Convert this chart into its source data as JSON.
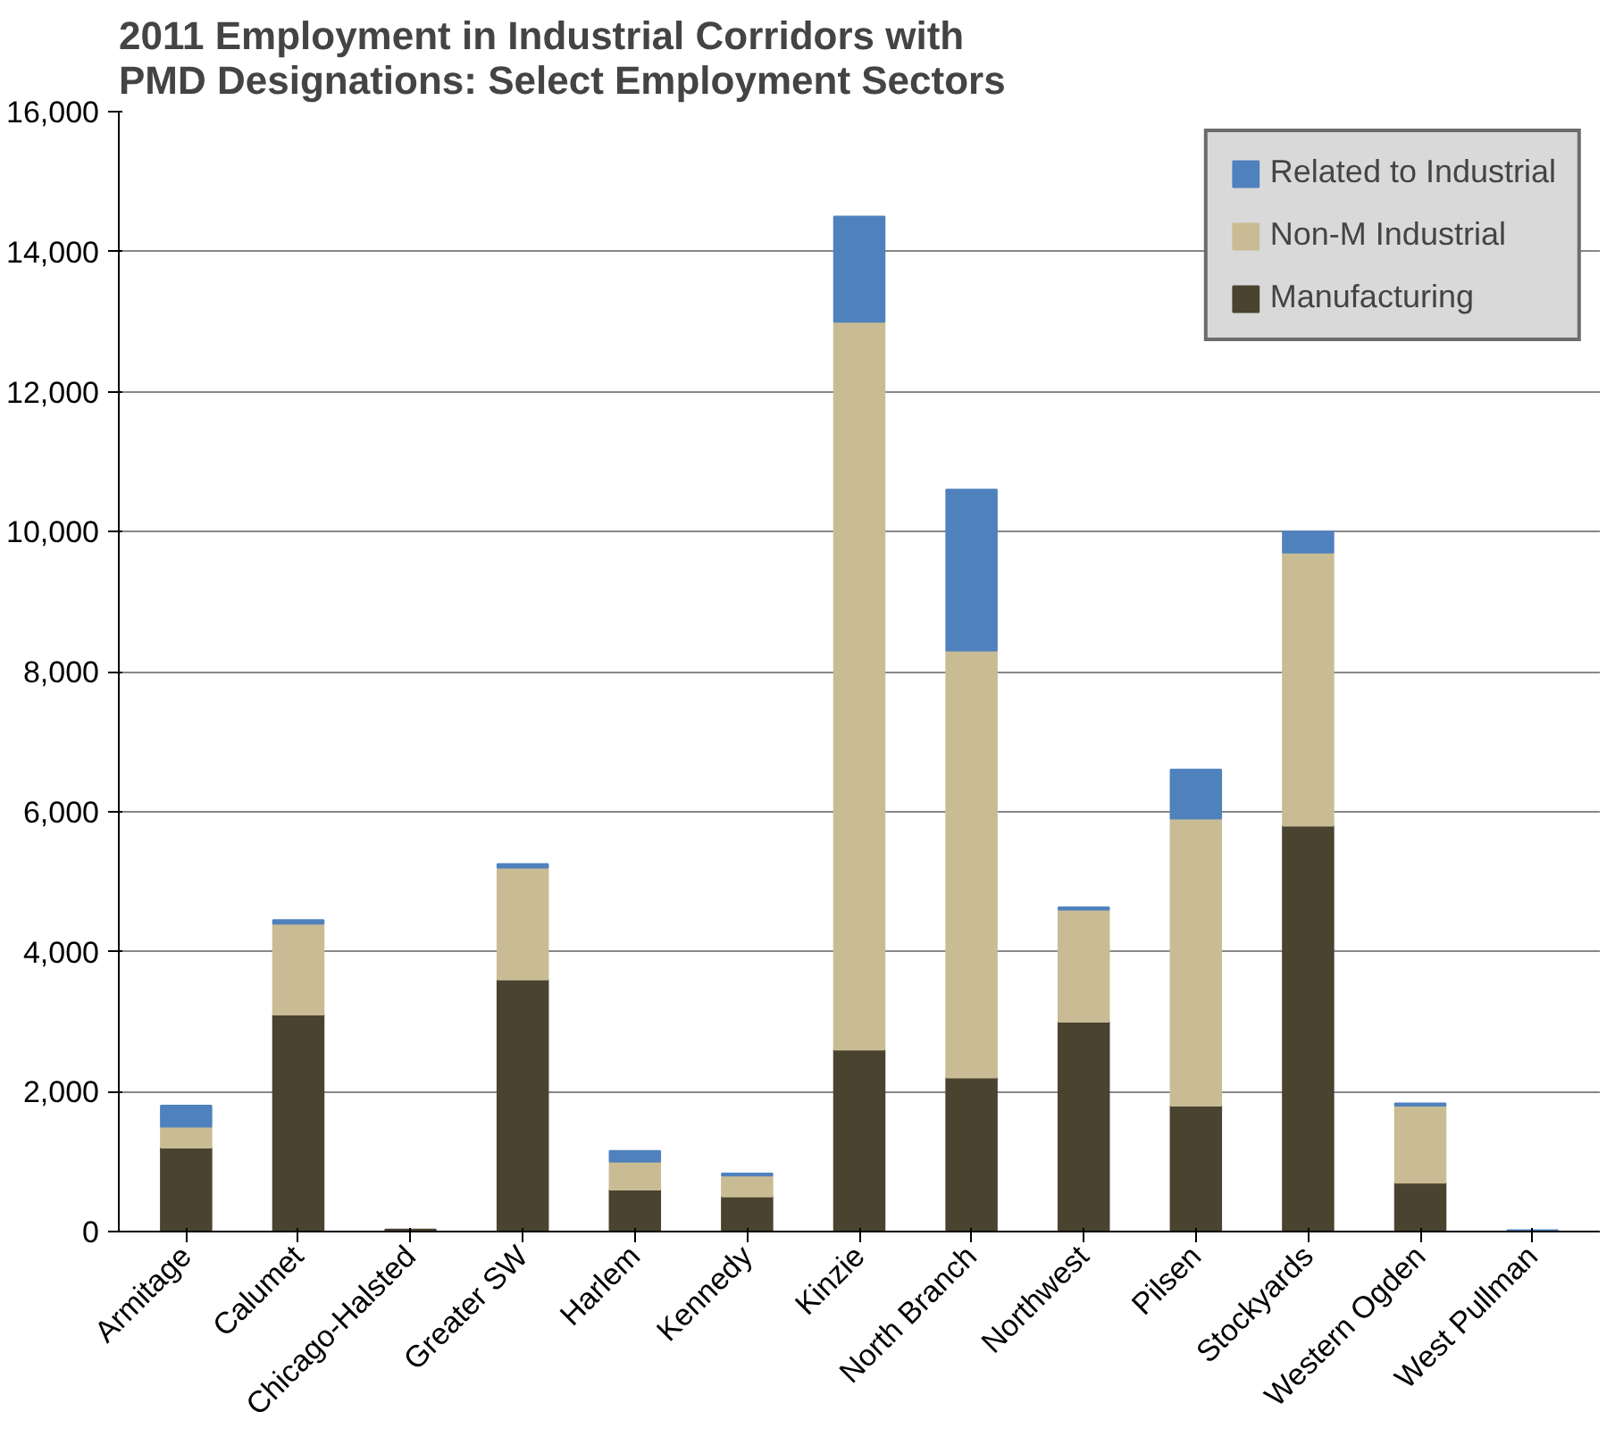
{
  "chart_data": {
    "type": "bar",
    "stacked": true,
    "title": "2011 Employment in Industrial Corridors with PMD Designations:  Select Employment Sectors",
    "categories": [
      "Armitage",
      "Calumet",
      "Chicago-Halsted",
      "Greater SW",
      "Harlem",
      "Kennedy",
      "Kinzie",
      "North Branch",
      "Northwest",
      "Pilsen",
      "Stockyards",
      "Western Ogden",
      "West Pullman"
    ],
    "series": [
      {
        "name": "Manufacturing",
        "color": "#4a4330",
        "values": [
          1200,
          3100,
          30,
          3600,
          600,
          500,
          2600,
          2200,
          3000,
          1800,
          5800,
          700,
          null
        ]
      },
      {
        "name": "Non-M Industrial",
        "color": "#c9bc94",
        "values": [
          300,
          1300,
          null,
          1600,
          400,
          300,
          10400,
          6100,
          1600,
          4100,
          3900,
          1100,
          null
        ]
      },
      {
        "name": "Related to Industrial",
        "color": "#4f81bd",
        "values": [
          300,
          50,
          null,
          50,
          150,
          30,
          1500,
          2300,
          30,
          700,
          300,
          30,
          20
        ]
      }
    ],
    "ylim": [
      0,
      16000
    ],
    "yticks": [
      {
        "value": 0,
        "label": "0"
      },
      {
        "value": 2000,
        "label": "2,000"
      },
      {
        "value": 4000,
        "label": "4,000"
      },
      {
        "value": 6000,
        "label": "6,000"
      },
      {
        "value": 8000,
        "label": "8,000"
      },
      {
        "value": 10000,
        "label": "10,000"
      },
      {
        "value": 12000,
        "label": "12,000"
      },
      {
        "value": 14000,
        "label": "14,000"
      },
      {
        "value": 16000,
        "label": "16,000"
      }
    ],
    "grid": "y",
    "legend": "top right"
  }
}
